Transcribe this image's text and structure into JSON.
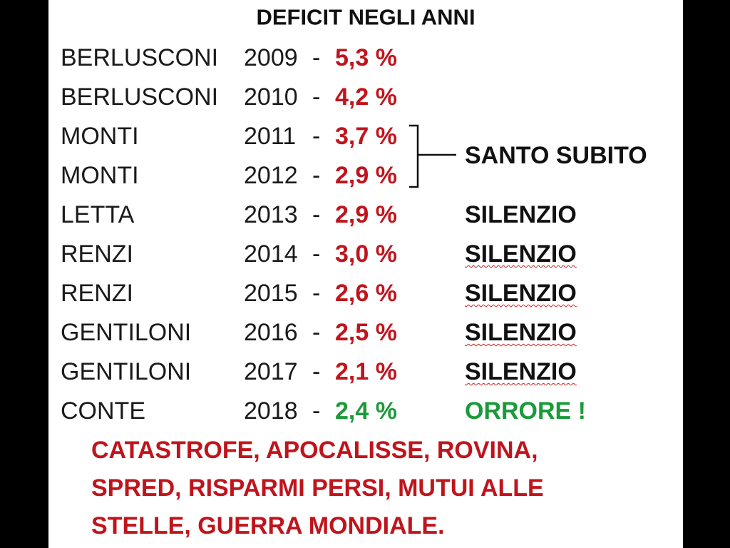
{
  "title": "DEFICIT NEGLI ANNI",
  "separator": "-",
  "rows": [
    {
      "name": "BERLUSCONI",
      "year": "2009",
      "value": "5,3 %",
      "color": "#c0141c"
    },
    {
      "name": "BERLUSCONI",
      "year": "2010",
      "value": "4,2 %",
      "color": "#c0141c"
    },
    {
      "name": "MONTI",
      "year": "2011",
      "value": "3,7 %",
      "color": "#c0141c"
    },
    {
      "name": "MONTI",
      "year": "2012",
      "value": "2,9 %",
      "color": "#c0141c"
    },
    {
      "name": "LETTA",
      "year": "2013",
      "value": "2,9 %",
      "color": "#c0141c",
      "comment": "SILENZIO",
      "comment_color": "#111111"
    },
    {
      "name": "RENZI",
      "year": "2014",
      "value": "3,0 %",
      "color": "#c0141c",
      "comment": "SILENZIO",
      "comment_color": "#111111",
      "wavy": true
    },
    {
      "name": "RENZI",
      "year": "2015",
      "value": "2,6 %",
      "color": "#c0141c",
      "comment": "SILENZIO",
      "comment_color": "#111111",
      "wavy": true
    },
    {
      "name": "GENTILONI",
      "year": "2016",
      "value": "2,5 %",
      "color": "#c0141c",
      "comment": "SILENZIO",
      "comment_color": "#111111",
      "wavy": true
    },
    {
      "name": "GENTILONI",
      "year": "2017",
      "value": "2,1 %",
      "color": "#c0141c",
      "comment": "SILENZIO",
      "comment_color": "#111111",
      "wavy": true
    },
    {
      "name": "CONTE",
      "year": "2018",
      "value": "2,4 %",
      "color": "#1a9a3a",
      "comment": "ORRORE !",
      "comment_color": "#1a9a3a"
    }
  ],
  "bracket_label": "SANTO SUBITO",
  "footer": [
    "CATASTROFE, APOCALISSE, ROVINA,",
    "SPRED, RISPARMI PERSI, MUTUI ALLE",
    "STELLE, GUERRA MONDIALE."
  ]
}
